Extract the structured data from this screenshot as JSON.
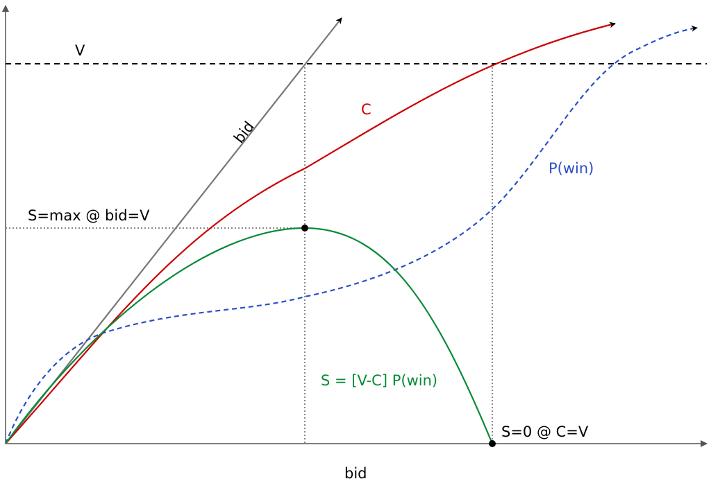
{
  "colors": {
    "axis": "#555555",
    "v_line": "#000000",
    "bid_line": "#777777",
    "c_curve": "#cc0000",
    "p_win_curve": "#2a4fc8",
    "s_curve": "#0a8a3a",
    "guide": "#888888",
    "point": "#000000"
  },
  "labels": {
    "v": "V",
    "bid_diag": "bid",
    "c": "C",
    "p_win": "P(win)",
    "s_max": "S=max @ bid=V",
    "s_formula": "S = [V-C] P(win)",
    "s_zero": "S=0 @ C=V",
    "x_axis": "bid"
  },
  "annotations": {
    "max_point": "maximum of S",
    "zero_point": "S = 0 where C = V"
  }
}
